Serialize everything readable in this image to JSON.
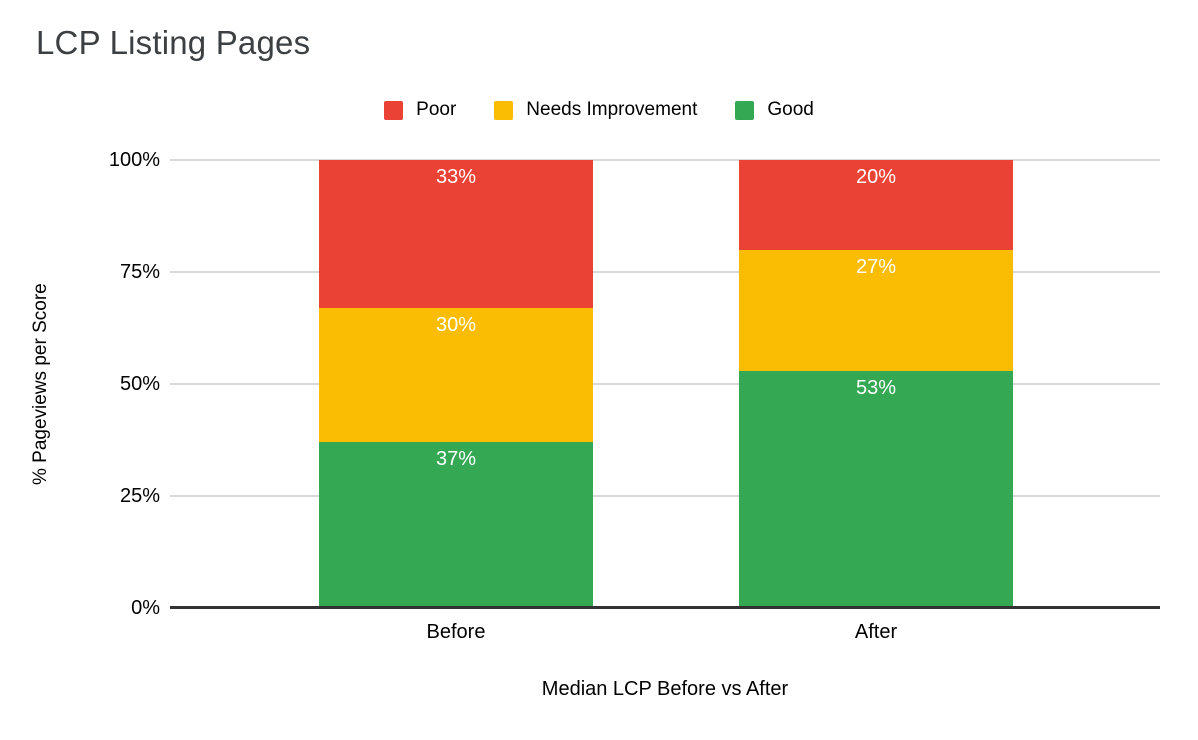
{
  "title": "LCP Listing Pages",
  "chart_data": {
    "type": "bar",
    "stacked": true,
    "title": "LCP Listing Pages",
    "categories": [
      "Before",
      "After"
    ],
    "series": [
      {
        "name": "Poor",
        "color": "#EA4335",
        "values": [
          33,
          20
        ]
      },
      {
        "name": "Needs Improvement",
        "color": "#FBBC04",
        "values": [
          30,
          27
        ]
      },
      {
        "name": "Good",
        "color": "#34A853",
        "values": [
          37,
          53
        ]
      }
    ],
    "stack_order_bottom_to_top": [
      "Good",
      "Needs Improvement",
      "Poor"
    ],
    "xlabel": "Median LCP Before vs After",
    "ylabel": "% Pageviews per Score",
    "y_ticks": [
      "0%",
      "25%",
      "50%",
      "75%",
      "100%"
    ],
    "ylim": [
      0,
      100
    ],
    "value_label_suffix": "%",
    "legend_position": "top",
    "grid": true
  },
  "appearance": {
    "background": "#ffffff",
    "title_color": "#3c4043",
    "axis_line_color": "#333333",
    "gridline_color": "#d9d9d9",
    "tick_label_color": "#000000",
    "bar_value_label_color": "#ffffff"
  }
}
